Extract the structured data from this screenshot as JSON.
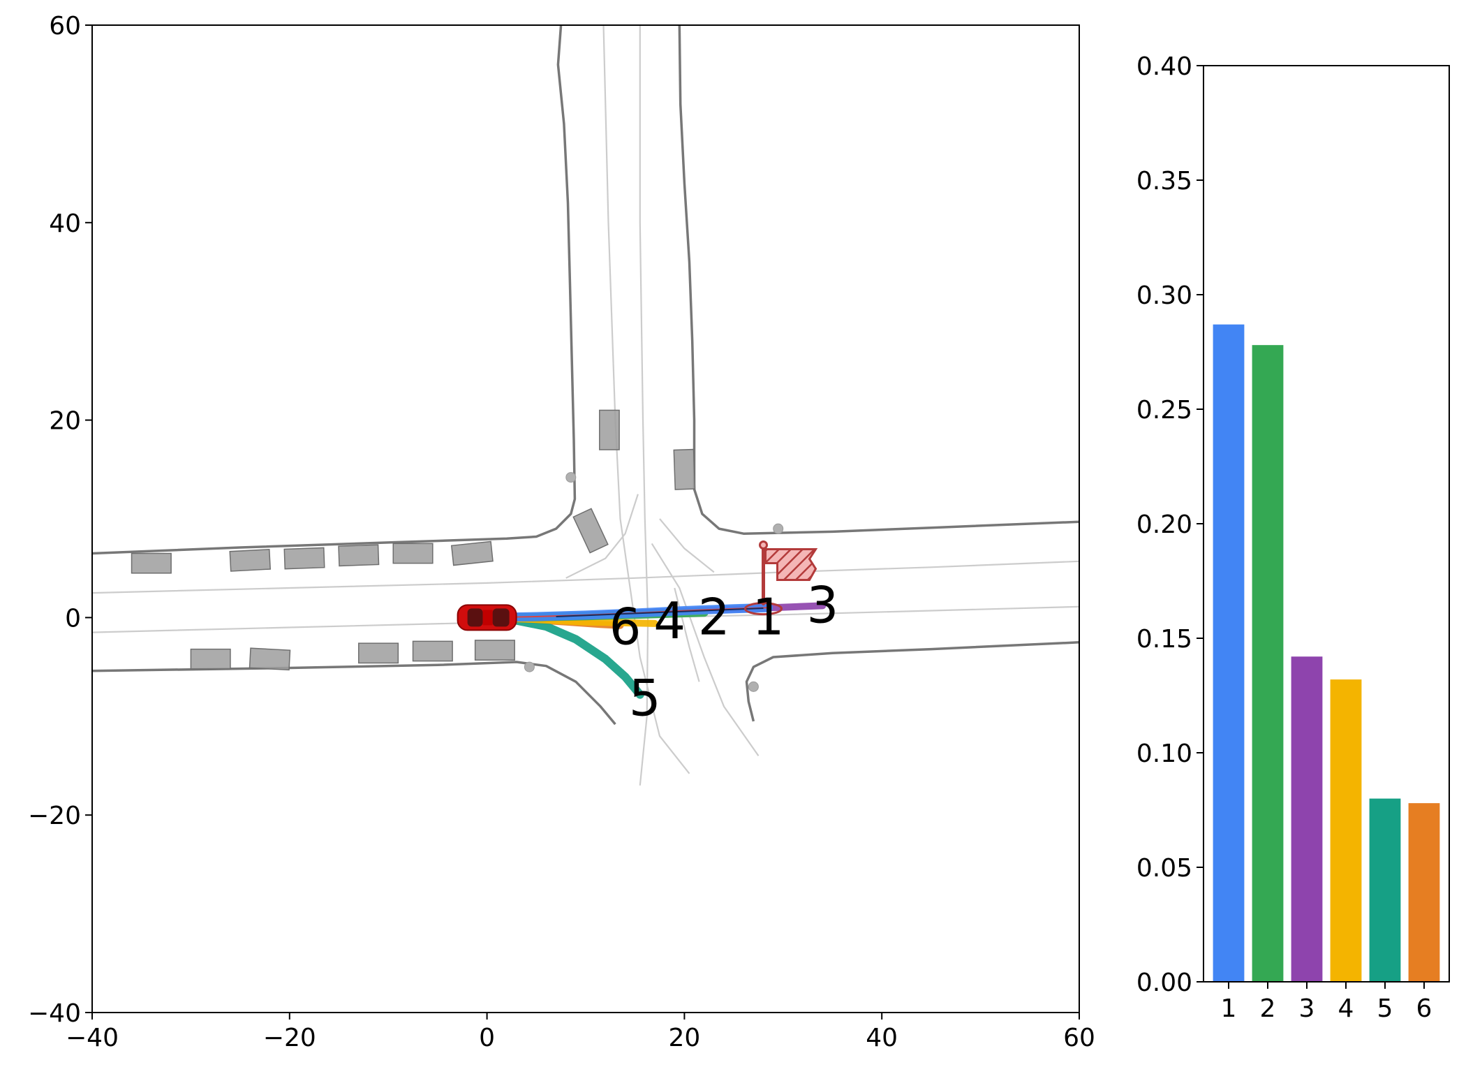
{
  "chart_data": [
    {
      "type": "scatter",
      "xlim": [
        -40,
        60
      ],
      "ylim": [
        -40,
        60
      ],
      "xticks": [
        "−40",
        "−20",
        "0",
        "20",
        "40",
        "60"
      ],
      "xtick_values": [
        -40,
        -20,
        0,
        20,
        40,
        60
      ],
      "yticks": [
        "−40",
        "−20",
        "0",
        "20",
        "40",
        "60"
      ],
      "ytick_values": [
        -40,
        -20,
        0,
        20,
        40,
        60
      ],
      "grid": false,
      "title": "",
      "xlabel": "",
      "ylabel": "",
      "road_edges": [
        [
          [
            7.5,
            60
          ],
          [
            7.2,
            56
          ],
          [
            7.8,
            50
          ],
          [
            8.2,
            42
          ],
          [
            8.4,
            34
          ],
          [
            8.6,
            26
          ],
          [
            8.8,
            18
          ],
          [
            8.9,
            12
          ],
          [
            8.5,
            10.5
          ],
          [
            7.0,
            9.0
          ],
          [
            5.0,
            8.2
          ],
          [
            2.0,
            8.0
          ],
          [
            -10,
            7.6
          ],
          [
            -25,
            7.1
          ],
          [
            -40,
            6.5
          ]
        ],
        [
          [
            19.5,
            60
          ],
          [
            19.6,
            52
          ],
          [
            20.0,
            44
          ],
          [
            20.5,
            36
          ],
          [
            20.8,
            28
          ],
          [
            21.0,
            20
          ],
          [
            21.0,
            13
          ],
          [
            21.8,
            10.5
          ],
          [
            23.5,
            9.0
          ],
          [
            26,
            8.5
          ],
          [
            35,
            8.7
          ],
          [
            45,
            9.1
          ],
          [
            60,
            9.7
          ]
        ],
        [
          [
            -40,
            -5.4
          ],
          [
            -20,
            -5.1
          ],
          [
            -5,
            -4.8
          ],
          [
            3,
            -4.5
          ],
          [
            6,
            -4.9
          ],
          [
            9,
            -6.5
          ],
          [
            11.5,
            -9.0
          ],
          [
            13.0,
            -10.8
          ]
        ],
        [
          [
            27,
            -10.5
          ],
          [
            26.5,
            -8.5
          ],
          [
            26.3,
            -6.5
          ],
          [
            27,
            -5
          ],
          [
            29,
            -4
          ],
          [
            35,
            -3.6
          ],
          [
            45,
            -3.2
          ],
          [
            60,
            -2.5
          ]
        ]
      ],
      "lane_lines": [
        [
          [
            -40,
            2.5
          ],
          [
            -20,
            3.0
          ],
          [
            0,
            3.5
          ],
          [
            15,
            4.0
          ],
          [
            30,
            4.6
          ],
          [
            45,
            5.1
          ],
          [
            60,
            5.7
          ]
        ],
        [
          [
            -40,
            -1.5
          ],
          [
            -20,
            -1.0
          ],
          [
            0,
            -0.5
          ],
          [
            15,
            0.0
          ],
          [
            30,
            0.3
          ],
          [
            45,
            0.7
          ],
          [
            60,
            1.1
          ]
        ],
        [
          [
            11.8,
            60
          ],
          [
            12.3,
            40
          ],
          [
            13.0,
            20
          ],
          [
            13.5,
            10
          ],
          [
            15.5,
            -4
          ],
          [
            17.5,
            -12
          ],
          [
            20.5,
            -15.8
          ]
        ],
        [
          [
            15.5,
            60
          ],
          [
            15.5,
            40
          ],
          [
            15.8,
            20
          ],
          [
            16.0,
            10
          ],
          [
            16.3,
            0
          ],
          [
            16.2,
            -10
          ],
          [
            15.5,
            -17
          ]
        ],
        [
          [
            8.0,
            4.0
          ],
          [
            12.0,
            6.0
          ],
          [
            14.0,
            8.5
          ],
          [
            15.3,
            12.5
          ]
        ],
        [
          [
            17.5,
            10.0
          ],
          [
            20.0,
            7.0
          ],
          [
            23.0,
            4.6
          ]
        ],
        [
          [
            16.7,
            7.5
          ],
          [
            19.5,
            3.0
          ],
          [
            22.0,
            -4.0
          ],
          [
            24.0,
            -9.0
          ],
          [
            27.5,
            -14.0
          ]
        ],
        [
          [
            19.0,
            3.0
          ],
          [
            20.5,
            -3.0
          ],
          [
            21.5,
            -6.5
          ]
        ]
      ],
      "vehicles": [
        [
          -34.0,
          5.5,
          4.0,
          2.0,
          0
        ],
        [
          -24.0,
          5.8,
          4.0,
          2.0,
          3
        ],
        [
          -18.5,
          6.0,
          4.0,
          2.0,
          2
        ],
        [
          -13.0,
          6.3,
          4.0,
          2.0,
          2
        ],
        [
          -7.5,
          6.5,
          4.0,
          2.0,
          0
        ],
        [
          -1.5,
          6.5,
          4.0,
          2.0,
          6
        ],
        [
          -28.0,
          -4.2,
          4.0,
          2.0,
          0
        ],
        [
          -22.0,
          -4.2,
          4.0,
          2.0,
          -3
        ],
        [
          -11.0,
          -3.6,
          4.0,
          2.0,
          0
        ],
        [
          -5.5,
          -3.4,
          4.0,
          2.0,
          0
        ],
        [
          0.8,
          -3.3,
          4.0,
          2.0,
          0
        ],
        [
          12.4,
          19.0,
          2.0,
          4.0,
          0
        ],
        [
          20.0,
          15.0,
          2.0,
          4.0,
          2
        ],
        [
          10.5,
          8.8,
          2.0,
          4.0,
          25
        ]
      ],
      "pedestrians": [
        [
          8.5,
          14.2
        ],
        [
          29.5,
          9.0
        ],
        [
          4.3,
          -5.0
        ],
        [
          27.0,
          -7.0
        ]
      ],
      "ego": {
        "x": 0,
        "y": 0,
        "heading_deg": 0
      },
      "goal": {
        "x": 28.0,
        "y": 6.5
      },
      "modes": [
        {
          "label": "1",
          "color": "#4285f4",
          "points": [
            [
              0,
              0
            ],
            [
              5,
              0.1
            ],
            [
              10,
              0.25
            ],
            [
              15,
              0.45
            ],
            [
              20,
              0.7
            ],
            [
              25,
              0.9
            ],
            [
              28.5,
              1.0
            ]
          ],
          "label_at": [
            28.5,
            0
          ]
        },
        {
          "label": "2",
          "color": "#34a853",
          "points": [
            [
              0,
              0
            ],
            [
              5,
              0.05
            ],
            [
              10,
              0.15
            ],
            [
              15,
              0.3
            ],
            [
              20,
              0.45
            ],
            [
              22.0,
              0.5
            ]
          ],
          "label_at": [
            23.0,
            0
          ]
        },
        {
          "label": "3",
          "color": "#8e44ad",
          "points": [
            [
              0,
              0
            ],
            [
              5,
              0.1
            ],
            [
              10,
              0.25
            ],
            [
              15,
              0.45
            ],
            [
              20,
              0.65
            ],
            [
              25,
              0.85
            ],
            [
              30,
              1.05
            ],
            [
              34.0,
              1.2
            ]
          ],
          "label_at": [
            34.0,
            1.2
          ]
        },
        {
          "label": "4",
          "color": "#f4b400",
          "points": [
            [
              0,
              0
            ],
            [
              5,
              -0.2
            ],
            [
              10,
              -0.45
            ],
            [
              15,
              -0.55
            ],
            [
              17.0,
              -0.6
            ]
          ],
          "label_at": [
            18.5,
            -0.4
          ]
        },
        {
          "label": "5",
          "color": "#16a085",
          "points": [
            [
              0,
              0
            ],
            [
              3,
              -0.3
            ],
            [
              6,
              -0.9
            ],
            [
              9,
              -2.2
            ],
            [
              12,
              -4.2
            ],
            [
              14.0,
              -6.0
            ],
            [
              15.5,
              -7.8
            ]
          ],
          "label_at": [
            16.0,
            -8.2
          ]
        },
        {
          "label": "6",
          "color": "#e67e22",
          "points": [
            [
              0,
              0
            ],
            [
              4,
              -0.2
            ],
            [
              8,
              -0.45
            ],
            [
              11.5,
              -0.7
            ],
            [
              13.5,
              -0.8
            ]
          ],
          "label_at": [
            14.0,
            -1.0
          ]
        }
      ]
    },
    {
      "type": "bar",
      "categories": [
        "1",
        "2",
        "3",
        "4",
        "5",
        "6"
      ],
      "values": [
        0.287,
        0.278,
        0.142,
        0.132,
        0.08,
        0.078
      ],
      "colors": [
        "#4285f4",
        "#34a853",
        "#8e44ad",
        "#f4b400",
        "#16a085",
        "#e67e22"
      ],
      "ylim": [
        0,
        0.4
      ],
      "yticks": [
        "0.00",
        "0.05",
        "0.10",
        "0.15",
        "0.20",
        "0.25",
        "0.30",
        "0.35",
        "0.40"
      ],
      "ytick_values": [
        0,
        0.05,
        0.1,
        0.15,
        0.2,
        0.25,
        0.3,
        0.35,
        0.4
      ],
      "grid": false,
      "title": "",
      "xlabel": "",
      "ylabel": ""
    }
  ]
}
